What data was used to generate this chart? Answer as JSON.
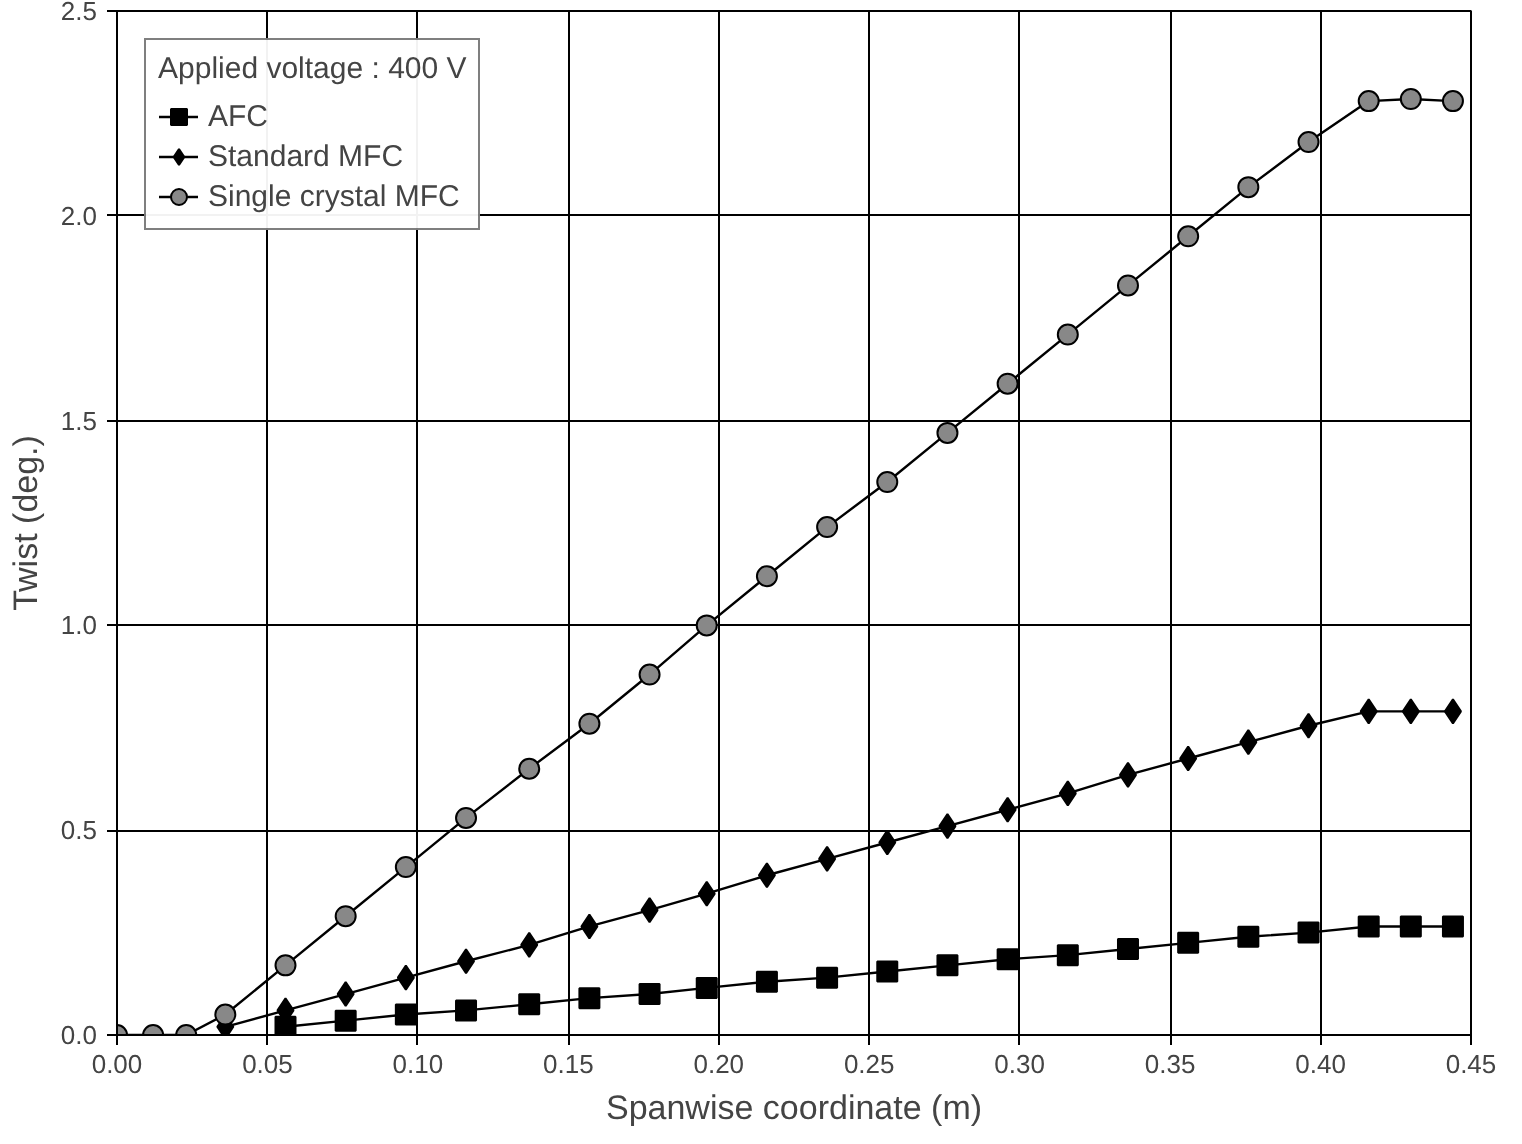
{
  "chart_data": {
    "type": "line",
    "xlabel": "Spanwise coordinate (m)",
    "ylabel": "Twist (deg.)",
    "legend_title": "Applied voltage : 400 V",
    "legend": "top left",
    "grid": true,
    "line_style": "solid",
    "x": [
      0,
      0.012,
      0.023,
      0.036,
      0.056,
      0.076,
      0.096,
      0.116,
      0.137,
      0.157,
      0.177,
      0.196,
      0.216,
      0.236,
      0.256,
      0.276,
      0.296,
      0.316,
      0.336,
      0.356,
      0.376,
      0.396,
      0.416,
      0.43,
      0.444
    ],
    "xlim": [
      0,
      0.45
    ],
    "ylim": [
      0,
      2.5
    ],
    "xticks": [
      {
        "value": 0,
        "label": "0.00"
      },
      {
        "value": 0.05,
        "label": "0.05"
      },
      {
        "value": 0.1,
        "label": "0.10"
      },
      {
        "value": 0.15,
        "label": "0.15"
      },
      {
        "value": 0.2,
        "label": "0.20"
      },
      {
        "value": 0.25,
        "label": "0.25"
      },
      {
        "value": 0.3,
        "label": "0.30"
      },
      {
        "value": 0.35,
        "label": "0.35"
      },
      {
        "value": 0.4,
        "label": "0.40"
      },
      {
        "value": 0.45,
        "label": "0.45"
      }
    ],
    "yticks": [
      {
        "value": 0,
        "label": "0.0"
      },
      {
        "value": 0.5,
        "label": "0.5"
      },
      {
        "value": 1,
        "label": "1.0"
      },
      {
        "value": 1.5,
        "label": "1.5"
      },
      {
        "value": 2,
        "label": "2.0"
      },
      {
        "value": 2.5,
        "label": "2.5"
      }
    ],
    "series": [
      {
        "name": "AFC",
        "color": "#000000",
        "marker": "square",
        "values": [
          null,
          null,
          null,
          null,
          0.02,
          0.035,
          0.05,
          0.06,
          0.075,
          0.09,
          0.1,
          0.115,
          0.13,
          0.14,
          0.155,
          0.17,
          0.185,
          0.195,
          0.21,
          0.225,
          0.24,
          0.25,
          0.265,
          0.265,
          0.265
        ]
      },
      {
        "name": "Standard MFC",
        "color": "#000000",
        "marker": "diamond",
        "values": [
          null,
          null,
          null,
          0.02,
          0.06,
          0.1,
          0.14,
          0.18,
          0.22,
          0.265,
          0.305,
          0.345,
          0.39,
          0.43,
          0.47,
          0.51,
          0.55,
          0.59,
          0.635,
          0.675,
          0.715,
          0.755,
          0.79,
          0.79,
          0.79
        ]
      },
      {
        "name": "Single crystal MFC",
        "color": "#000000",
        "marker": "circle",
        "values": [
          0,
          0,
          0,
          0.05,
          0.17,
          0.29,
          0.41,
          0.53,
          0.65,
          0.76,
          0.88,
          1.0,
          1.12,
          1.24,
          1.35,
          1.47,
          1.59,
          1.71,
          1.83,
          1.95,
          2.07,
          2.18,
          2.28,
          2.285,
          2.28
        ]
      }
    ]
  }
}
